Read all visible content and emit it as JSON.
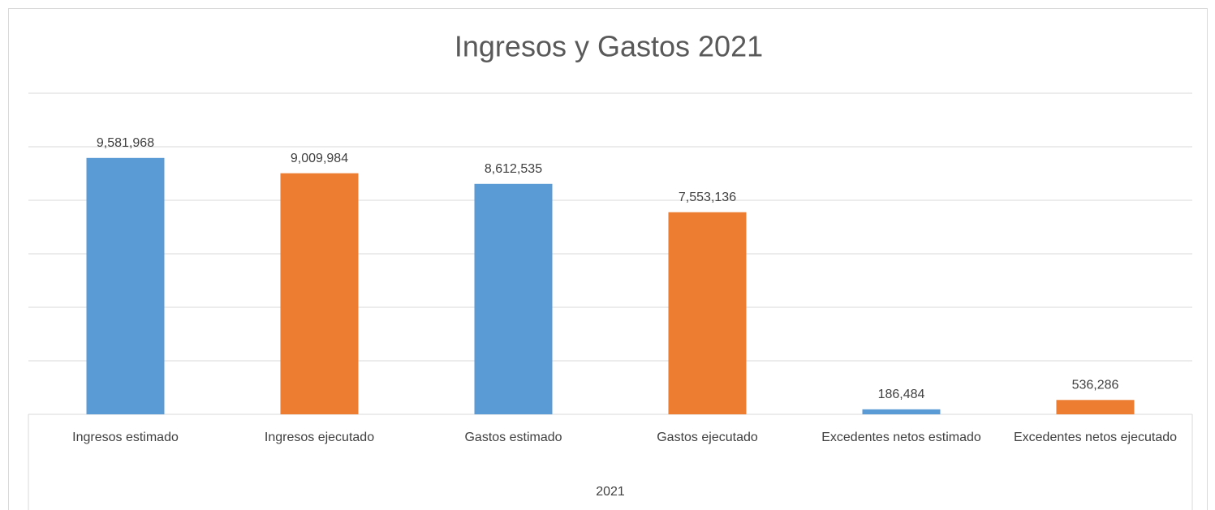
{
  "chart_data": {
    "type": "bar",
    "title": "Ingresos y Gastos 2021",
    "categories": [
      "Ingresos estimado",
      "Ingresos ejecutado",
      "Gastos estimado",
      "Gastos ejecutado",
      "Excedentes netos estimado",
      "Excedentes netos ejecutado"
    ],
    "values": [
      9581968,
      9009984,
      8612535,
      7553136,
      186484,
      536286
    ],
    "value_labels": [
      "9,581,968",
      "9,009,984",
      "8,612,535",
      "7,553,136",
      "186,484",
      "536,286"
    ],
    "colors": [
      "#5b9bd5",
      "#ed7d31",
      "#5b9bd5",
      "#ed7d31",
      "#5b9bd5",
      "#ed7d31"
    ],
    "group_label": "2021",
    "ylim": [
      0,
      12000000
    ],
    "yticks": [
      0,
      2000000,
      4000000,
      6000000,
      8000000,
      10000000,
      12000000
    ],
    "grid": true
  }
}
